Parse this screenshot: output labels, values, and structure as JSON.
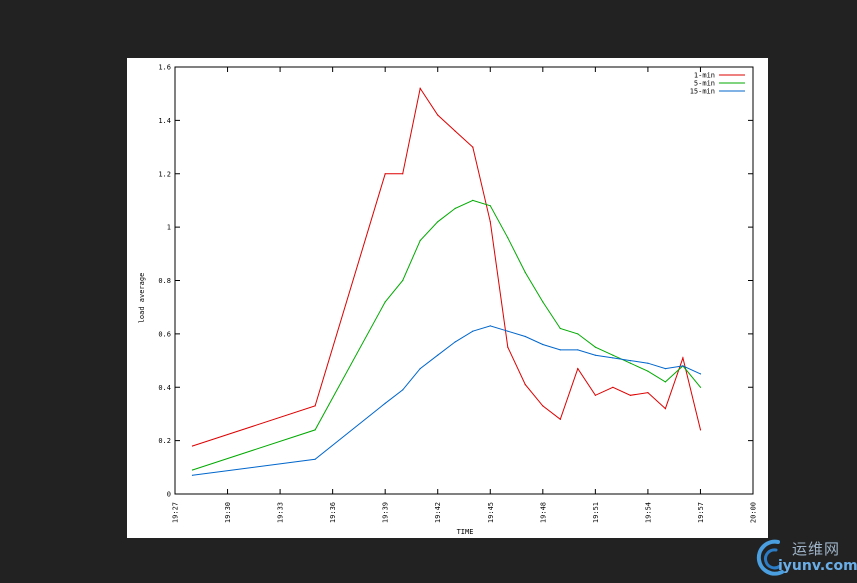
{
  "chart_data": {
    "type": "line",
    "title": "",
    "xlabel": "TIME",
    "ylabel": "load average",
    "ylim": [
      0,
      1.6
    ],
    "xlim": [
      "19:27",
      "20:00"
    ],
    "y_ticks": [
      "0",
      "0.2",
      "0.4",
      "0.6",
      "0.8",
      "1",
      "1.2",
      "1.4",
      "1.6"
    ],
    "x_ticks": [
      "19:27",
      "19:30",
      "19:33",
      "19:36",
      "19:39",
      "19:42",
      "19:45",
      "19:48",
      "19:51",
      "19:54",
      "19:57",
      "20:00"
    ],
    "legend_position": "top-right",
    "grid": false,
    "series": [
      {
        "name": "1-min",
        "color": "#dd0000",
        "x": [
          "19:28",
          "19:35",
          "19:39",
          "19:40",
          "19:41",
          "19:42",
          "19:43",
          "19:44",
          "19:45",
          "19:46",
          "19:47",
          "19:48",
          "19:49",
          "19:50",
          "19:51",
          "19:52",
          "19:53",
          "19:54",
          "19:55",
          "19:56",
          "19:57"
        ],
        "values": [
          0.18,
          0.33,
          1.2,
          1.2,
          1.52,
          1.42,
          1.36,
          1.3,
          1.02,
          0.55,
          0.41,
          0.33,
          0.28,
          0.47,
          0.37,
          0.4,
          0.37,
          0.38,
          0.32,
          0.51,
          0.24
        ]
      },
      {
        "name": "5-min",
        "color": "#00aa00",
        "x": [
          "19:28",
          "19:35",
          "19:39",
          "19:40",
          "19:41",
          "19:42",
          "19:43",
          "19:44",
          "19:45",
          "19:46",
          "19:47",
          "19:48",
          "19:49",
          "19:50",
          "19:51",
          "19:52",
          "19:53",
          "19:54",
          "19:55",
          "19:56",
          "19:57"
        ],
        "values": [
          0.09,
          0.24,
          0.72,
          0.8,
          0.95,
          1.02,
          1.07,
          1.1,
          1.08,
          0.96,
          0.83,
          0.72,
          0.62,
          0.6,
          0.55,
          0.52,
          0.49,
          0.46,
          0.42,
          0.48,
          0.4
        ]
      },
      {
        "name": "15-min",
        "color": "#0066cc",
        "x": [
          "19:28",
          "19:35",
          "19:39",
          "19:40",
          "19:41",
          "19:42",
          "19:43",
          "19:44",
          "19:45",
          "19:46",
          "19:47",
          "19:48",
          "19:49",
          "19:50",
          "19:51",
          "19:52",
          "19:53",
          "19:54",
          "19:55",
          "19:56",
          "19:57"
        ],
        "values": [
          0.07,
          0.13,
          0.34,
          0.39,
          0.47,
          0.52,
          0.57,
          0.61,
          0.63,
          0.61,
          0.59,
          0.56,
          0.54,
          0.54,
          0.52,
          0.51,
          0.5,
          0.49,
          0.47,
          0.48,
          0.45
        ]
      }
    ]
  },
  "watermark": {
    "text": "运维网",
    "url": "iyunv.com"
  }
}
